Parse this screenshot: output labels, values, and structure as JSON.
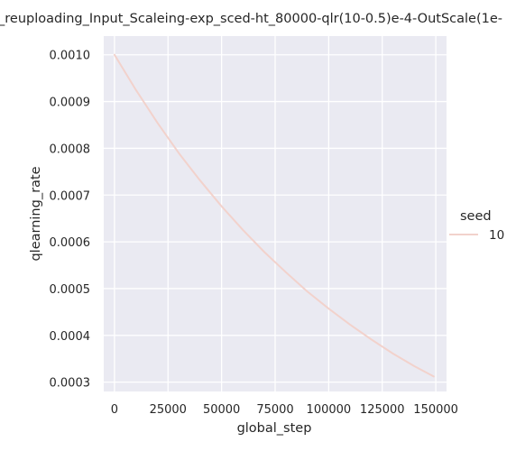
{
  "chart_data": {
    "type": "line",
    "title": "_reuploading_Input_Scaleing-exp_sced-ht_80000-qlr(10-0.5)e-4-OutScale(1e-",
    "xlabel": "global_step",
    "ylabel": "qlearning_rate",
    "xlim": [
      -5000,
      155000
    ],
    "ylim": [
      0.00028,
      0.00104
    ],
    "x_ticks": [
      0,
      25000,
      50000,
      75000,
      100000,
      125000,
      150000
    ],
    "x_tick_labels": [
      "0",
      "25000",
      "50000",
      "75000",
      "100000",
      "125000",
      "150000"
    ],
    "y_ticks": [
      0.0003,
      0.0004,
      0.0005,
      0.0006,
      0.0007,
      0.0008,
      0.0009,
      0.001
    ],
    "y_tick_labels": [
      "0.0003",
      "0.0004",
      "0.0005",
      "0.0006",
      "0.0007",
      "0.0008",
      "0.0009",
      "0.0010"
    ],
    "grid": true,
    "legend": {
      "title": "seed",
      "placement": "right"
    },
    "series": [
      {
        "name": "10",
        "color": "#f2d2cc",
        "x": [
          0,
          10000,
          20000,
          30000,
          40000,
          50000,
          60000,
          70000,
          80000,
          90000,
          100000,
          110000,
          120000,
          130000,
          140000,
          149000
        ],
        "y": [
          0.001,
          0.000925,
          0.000855,
          0.00079,
          0.000731,
          0.000676,
          0.000625,
          0.000578,
          0.000535,
          0.000494,
          0.000457,
          0.000423,
          0.000391,
          0.000361,
          0.000334,
          0.000312
        ]
      }
    ]
  },
  "colors": {
    "plot_background": "#eaeaf2",
    "grid": "#ffffff",
    "text": "#262626"
  }
}
